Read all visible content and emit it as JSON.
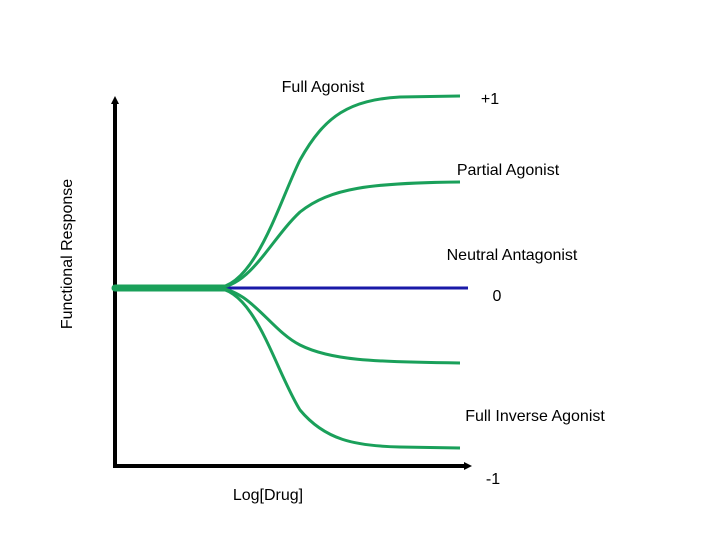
{
  "diagram": {
    "y_axis_label": "Functional Response",
    "x_axis_label": "Log[Drug]",
    "levels": {
      "top": "+1",
      "middle": "0",
      "bottom": "-1"
    },
    "curves": {
      "full_agonist": "Full Agonist",
      "partial_agonist": "Partial Agonist",
      "neutral_antagonist": "Neutral Antagonist",
      "full_inverse_agonist": "Full Inverse Agonist"
    }
  }
}
